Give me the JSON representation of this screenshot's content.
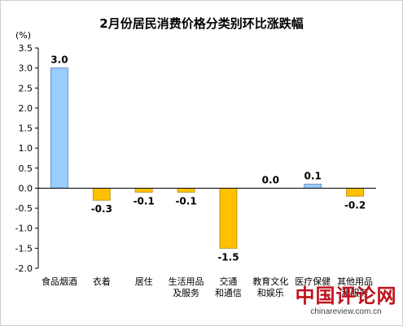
{
  "chart_data": {
    "type": "bar",
    "title": "2月份居民消费价格分类别环比涨跌幅",
    "unit_label": "(%)",
    "categories": [
      [
        "食品烟酒"
      ],
      [
        "衣着"
      ],
      [
        "居住"
      ],
      [
        "生活用品",
        "及服务"
      ],
      [
        "交通",
        "和通信"
      ],
      [
        "教育文化",
        "和娱乐"
      ],
      [
        "医疗保健"
      ],
      [
        "其他用品",
        "和服务"
      ]
    ],
    "values": [
      3.0,
      -0.3,
      -0.1,
      -0.1,
      -1.5,
      0.0,
      0.1,
      -0.2
    ],
    "value_labels": [
      "3.0",
      "-0.3",
      "-0.1",
      "-0.1",
      "-1.5",
      "0.0",
      "0.1",
      "-0.2"
    ],
    "yticks": [
      "3.5",
      "3.0",
      "2.5",
      "2.0",
      "1.5",
      "1.0",
      "0.5",
      "0.0",
      "-0.5",
      "-1.0",
      "-1.5",
      "-2.0"
    ],
    "ylim": [
      -2.0,
      3.5
    ],
    "grid": false,
    "colors": {
      "positive": "#99ccff",
      "negative": "#ffc000",
      "positive_stroke": "#4f81bd",
      "negative_stroke": "#b38600",
      "axis": "#000000"
    }
  },
  "watermark": {
    "main": "中国评论网",
    "sub": "chinareview.com.cn"
  }
}
